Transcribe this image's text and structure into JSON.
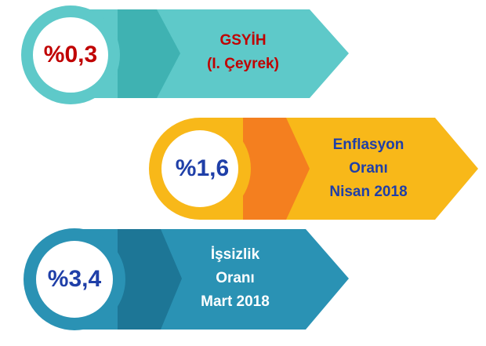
{
  "items": [
    {
      "value": "%0,3",
      "label": [
        "GSYİH",
        "(I. Çeyrek)"
      ]
    },
    {
      "value": "%1,6",
      "label": [
        "Enflasyon",
        "Oranı",
        "Nisan 2018"
      ]
    },
    {
      "value": "%3,4",
      "label": [
        "İşsizlik",
        "Oranı",
        "Mart 2018"
      ]
    }
  ]
}
